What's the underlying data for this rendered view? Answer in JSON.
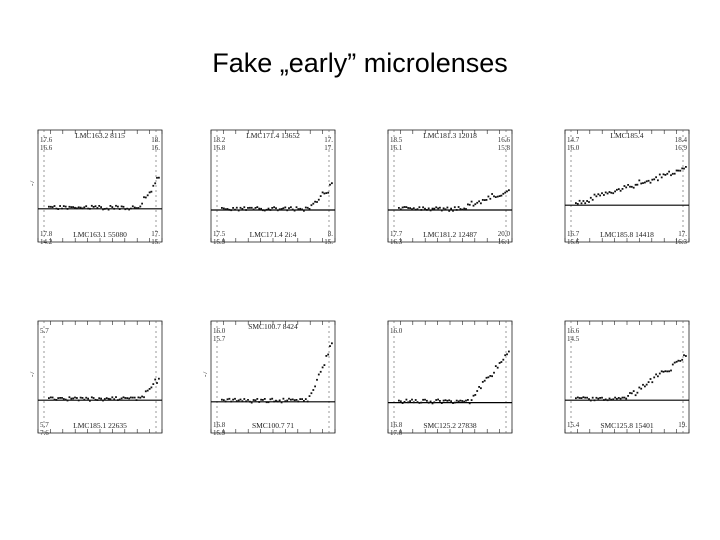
{
  "slide": {
    "title": "Fake „early” microlenses"
  },
  "colors": {
    "ink": "#111111",
    "frame": "#222222",
    "baseline": "#000000"
  },
  "chart_data": [
    {
      "type": "scatter",
      "labels": {
        "top": "LMC163.2 8115",
        "bottom": "LMC163.1 55080"
      },
      "mags": {
        "tl1": "17.6",
        "tl2": "16.6",
        "tr1": "18.",
        "tr2": "16.",
        "bl1": "17.8",
        "bl2": "14.2",
        "br1": "17.",
        "br2": "15."
      },
      "ylabel": "-7",
      "baseline": 0.13,
      "rise_start": 0.82,
      "peak": 0.52,
      "seed": 11
    },
    {
      "type": "scatter",
      "labels": {
        "top": "LMC171.4 13652",
        "bottom": "LMC171.4 2i:4"
      },
      "mags": {
        "tl1": "18.2",
        "tl2": "16.8",
        "tr1": "17.",
        "tr2": "17.",
        "bl1": "17.5",
        "bl2": "15.9",
        "br1": "8.",
        "br2": "15."
      },
      "ylabel": "",
      "baseline": 0.1,
      "rise_start": 0.8,
      "peak": 0.4,
      "seed": 23
    },
    {
      "type": "scatter",
      "labels": {
        "top": "LMC181.3 12018",
        "bottom": "LMC181.2 12487"
      },
      "mags": {
        "tl1": "18.5",
        "tl2": "16.1",
        "tr1": "16.6",
        "tr2": "15.8",
        "bl1": "17.7",
        "bl2": "16.3",
        "br1": "20.0",
        "br2": "16.1"
      },
      "ylabel": "",
      "baseline": 0.1,
      "rise_start": 0.55,
      "peak": 0.32,
      "seed": 37
    },
    {
      "type": "scatter",
      "labels": {
        "top": "LMC185.4",
        "bottom": "LMC185.8 14418"
      },
      "mags": {
        "tl1": "14.7",
        "tl2": "16.0",
        "tr1": "18.4",
        "tr2": "16.9",
        "bl1": "16.7",
        "bl2": "15.6",
        "br1": "17.",
        "br2": "16.3"
      },
      "ylabel": "",
      "baseline": 0.22,
      "rise_start": 0.0,
      "peak": 0.6,
      "seed": 41
    },
    {
      "type": "scatter",
      "labels": {
        "top": "",
        "bottom": "LMC185.1 22635"
      },
      "mags": {
        "tl1": "5.7",
        "tl2": "",
        "tr1": "",
        "tr2": "",
        "bl1": "5.7",
        "bl2": "7.6",
        "br1": "",
        "br2": ""
      },
      "ylabel": "-7",
      "baseline": 0.12,
      "rise_start": 0.82,
      "peak": 0.35,
      "seed": 53
    },
    {
      "type": "scatter",
      "labels": {
        "top": "SMC100.7 8424",
        "bottom": "SMC100.7 71"
      },
      "mags": {
        "tl1": "16.0",
        "tl2": "15.7",
        "tr1": "",
        "tr2": "",
        "bl1": "16.8",
        "bl2": "15.9",
        "br1": "",
        "br2": ""
      },
      "ylabel": "-7",
      "baseline": 0.08,
      "rise_start": 0.78,
      "peak": 0.92,
      "seed": 67
    },
    {
      "type": "scatter",
      "labels": {
        "top": "",
        "bottom": "SMC125.2 27838"
      },
      "mags": {
        "tl1": "16.0",
        "tl2": "",
        "tr1": "",
        "tr2": "",
        "bl1": "16.8",
        "bl2": "17.0",
        "br1": "",
        "br2": ""
      },
      "ylabel": "",
      "baseline": 0.06,
      "rise_start": 0.65,
      "peak": 0.85,
      "seed": 79
    },
    {
      "type": "scatter",
      "labels": {
        "top": "",
        "bottom": "SMC125.8 15401"
      },
      "mags": {
        "tl1": "16.6",
        "tl2": "14.5",
        "tr1": "",
        "tr2": "",
        "bl1": "15.4",
        "bl2": "",
        "br1": "19.",
        "br2": ""
      },
      "ylabel": "",
      "baseline": 0.12,
      "rise_start": 0.45,
      "peak": 0.7,
      "seed": 97
    }
  ]
}
